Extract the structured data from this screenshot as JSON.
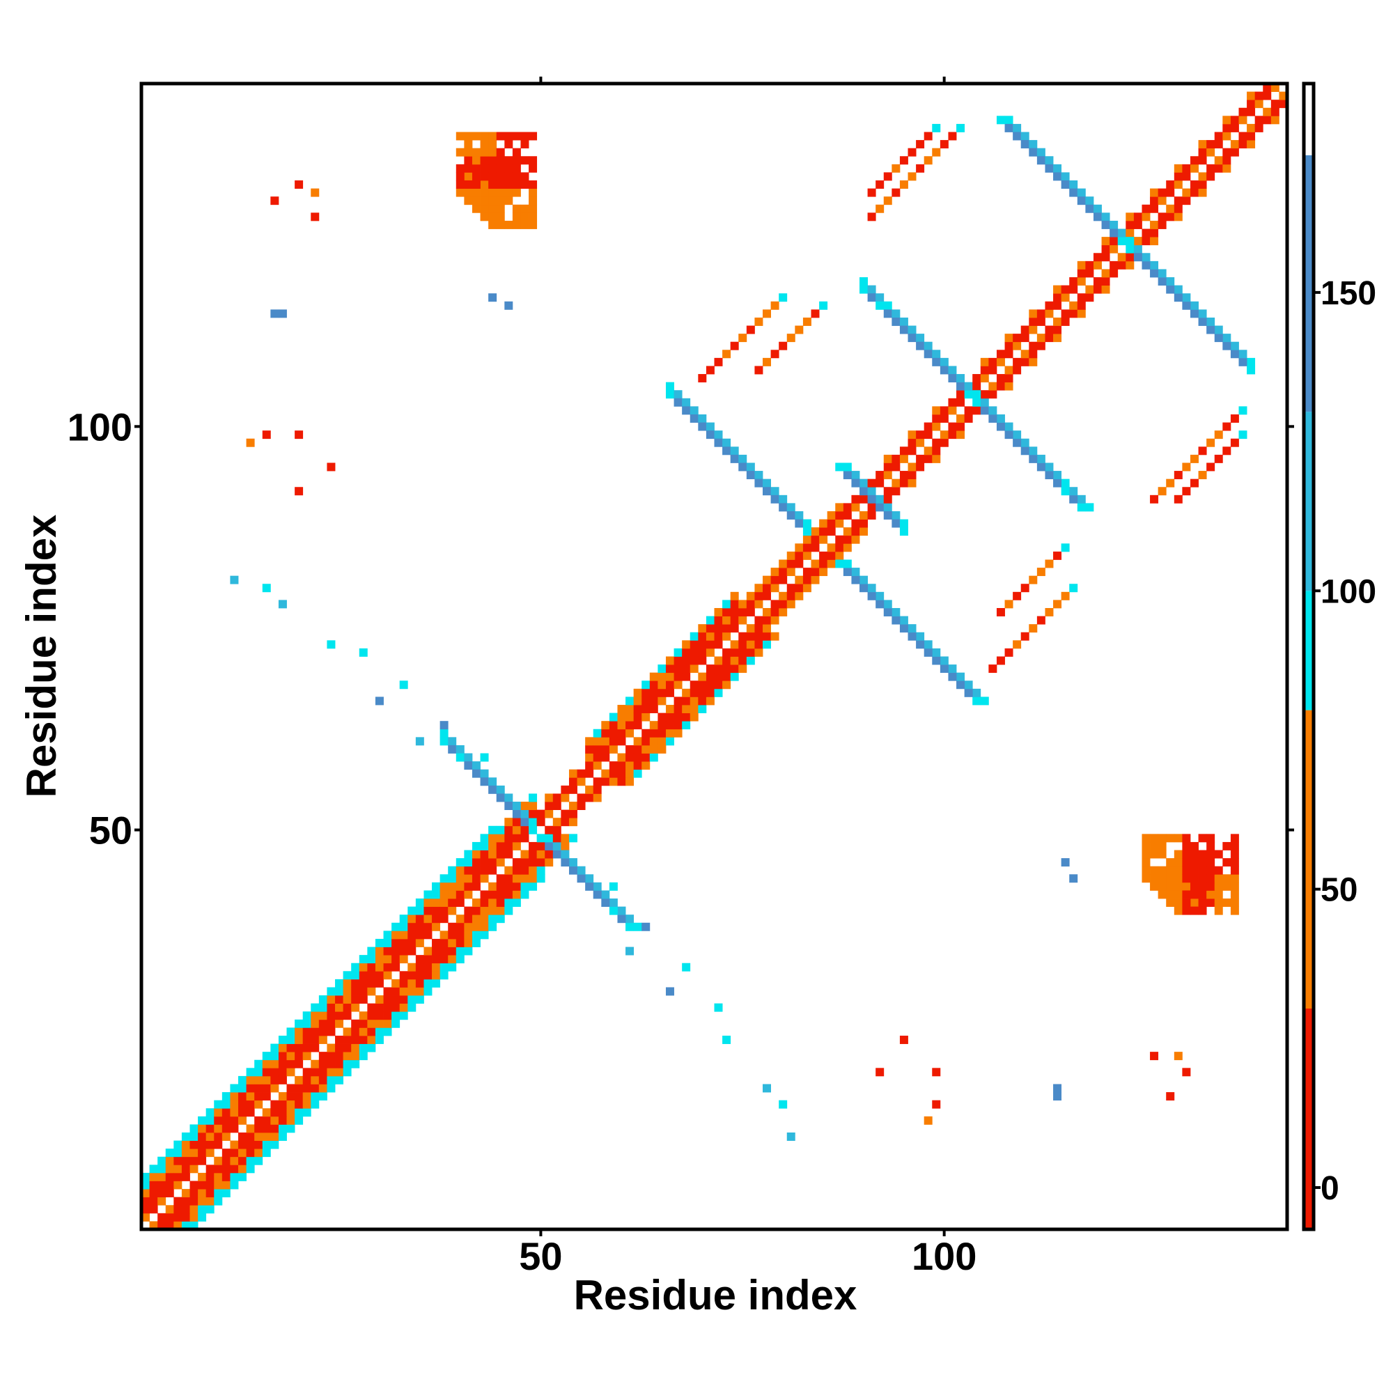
{
  "chart_data": {
    "type": "heatmap",
    "title": "",
    "xlabel": "Residue index",
    "ylabel": "Residue index",
    "n_residues": 142,
    "xlim": [
      0.5,
      142.5
    ],
    "ylim": [
      0.5,
      142.5
    ],
    "x_ticks": [
      50,
      100
    ],
    "y_ticks": [
      50,
      100
    ],
    "x_tick_labels": [
      "50",
      "100"
    ],
    "y_tick_labels": [
      "50",
      "100"
    ],
    "colorbar": {
      "range": [
        -7,
        185
      ],
      "ticks": [
        0,
        50,
        100,
        150
      ],
      "tick_labels": [
        "0",
        "50",
        "100",
        "150"
      ],
      "bins": [
        {
          "from": -7,
          "to": 30,
          "color": "#ee1a00"
        },
        {
          "from": 30,
          "to": 80,
          "color": "#f87d00"
        },
        {
          "from": 80,
          "to": 100,
          "color": "#00e5ee"
        },
        {
          "from": 100,
          "to": 130,
          "color": "#2fb8dc"
        },
        {
          "from": 130,
          "to": 173,
          "color": "#4a8ac8"
        },
        {
          "from": 173,
          "to": 185,
          "color": "#ffffff"
        }
      ]
    },
    "cell_colors": {
      "red": "#ee1a00",
      "orange": "#f87d00",
      "cyan": "#00e5ee",
      "lightblue": "#2fb8dc",
      "steelblue": "#4a8ac8"
    },
    "approx_contact_regions": [
      {
        "residues_x": [
          1,
          142
        ],
        "residues_y": [
          1,
          142
        ],
        "pattern": "diagonal band",
        "dominant_values": "0-80"
      },
      {
        "residues_x": [
          40,
          50
        ],
        "residues_y": [
          129,
          137
        ],
        "pattern": "off-diagonal block",
        "dominant_values": "0-80"
      },
      {
        "residues_x": [
          125,
          133
        ],
        "residues_y": [
          40,
          50
        ],
        "pattern": "off-diagonal block",
        "dominant_values": "0-80"
      },
      {
        "residues_x": [
          44,
          58
        ],
        "residues_y": [
          44,
          58
        ],
        "pattern": "antiparallel cross at 50",
        "dominant_values": "100-170"
      },
      {
        "residues_x": [
          66,
          83
        ],
        "residues_y": [
          88,
          103
        ],
        "pattern": "antiparallel strip",
        "dominant_values": "100-170"
      },
      {
        "residues_x": [
          90,
          104
        ],
        "residues_y": [
          79,
          94
        ],
        "pattern": "antiparallel strip",
        "dominant_values": "100-170"
      },
      {
        "residues_x": [
          89,
          112
        ],
        "residues_y": [
          94,
          117
        ],
        "pattern": "antiparallel cross at 104",
        "dominant_values": "100-170"
      },
      {
        "residues_x": [
          108,
          139
        ],
        "residues_y": [
          111,
          139
        ],
        "pattern": "antiparallel cross at 123",
        "dominant_values": "100-170"
      },
      {
        "residues_x": [
          70,
          80
        ],
        "residues_y": [
          106,
          116
        ],
        "pattern": "parallel strip",
        "dominant_values": "0-80"
      },
      {
        "residues_x": [
          91,
          99
        ],
        "residues_y": [
          129,
          137
        ],
        "pattern": "parallel strip",
        "dominant_values": "0-80"
      },
      {
        "residues_x": [
          107,
          115
        ],
        "residues_y": [
          77,
          86
        ],
        "pattern": "parallel strip",
        "dominant_values": "0-80"
      },
      {
        "residues_x": [
          126,
          137
        ],
        "residues_y": [
          91,
          100
        ],
        "pattern": "parallel strip",
        "dominant_values": "0-80"
      }
    ]
  }
}
